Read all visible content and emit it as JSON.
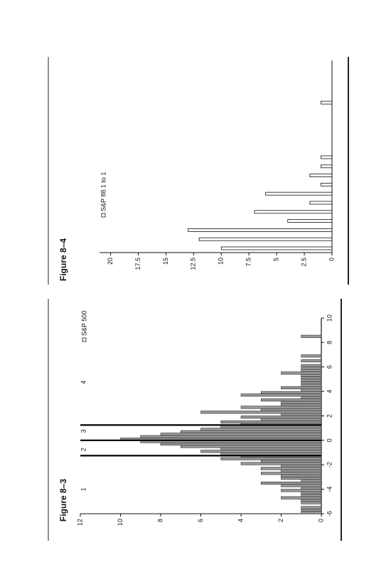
{
  "chart_data": [
    {
      "type": "histogram",
      "title": "Figure 8–3",
      "bins": [
        -6,
        -5.8,
        -5.6,
        -5.4,
        -5.2,
        -5,
        -4.8,
        -4.6,
        -4.4,
        -4.2,
        -4,
        -3.8,
        -3.6,
        -3.4,
        -3.2,
        -3,
        -2.8,
        -2.6,
        -2.4,
        -2.2,
        -2,
        -1.8,
        -1.6,
        -1.4,
        -1.2,
        -1,
        -0.8,
        -0.6,
        -0.4,
        -0.2,
        0,
        0.2,
        0.4,
        0.6,
        0.8,
        1,
        1.2,
        1.4,
        1.6,
        1.8,
        2,
        2.2,
        2.4,
        2.6,
        2.8,
        3,
        3.2,
        3.4,
        3.6,
        3.8,
        4,
        4.2,
        4.4,
        4.6,
        4.8,
        5,
        5.2,
        5.4,
        5.6,
        5.8,
        6,
        6.2,
        6.4,
        6.6,
        6.8,
        7,
        7.2,
        7.4,
        7.6,
        7.8,
        8,
        8.2,
        8.4,
        8.6,
        8.8,
        9,
        9.2,
        9.4,
        9.6,
        9.8,
        10
      ],
      "series": [
        {
          "name": "S&P 500",
          "color": "#9a9a9a",
          "values": [
            1,
            1,
            1,
            0,
            1,
            1,
            2,
            1,
            1,
            2,
            1,
            2,
            3,
            1,
            2,
            2,
            3,
            2,
            3,
            2,
            4,
            3,
            5,
            4,
            5,
            6,
            5,
            7,
            8,
            9,
            10,
            9,
            8,
            7,
            6,
            5,
            4,
            5,
            3,
            4,
            2,
            6,
            3,
            4,
            2,
            2,
            3,
            1,
            4,
            3,
            1,
            2,
            1,
            1,
            1,
            1,
            1,
            2,
            1,
            1,
            1,
            0,
            1,
            0,
            1,
            0,
            0,
            0,
            0,
            0,
            0,
            0,
            1,
            0,
            0,
            0,
            0,
            0,
            0,
            0
          ]
        }
      ],
      "xlim": [
        -6,
        10
      ],
      "xticks": [
        -6,
        -4,
        -2,
        0,
        2,
        4,
        6,
        8,
        10
      ],
      "ylim": [
        0,
        12
      ],
      "yticks": [
        0,
        2,
        4,
        6,
        8,
        10,
        12
      ],
      "vlines": [
        -1.25,
        0,
        1.25
      ],
      "annotations": [
        {
          "text": "1",
          "x": -4
        },
        {
          "text": "2",
          "x": -0.75
        },
        {
          "text": "3",
          "x": 0.75
        },
        {
          "text": "4",
          "x": 4.75
        }
      ]
    },
    {
      "type": "bar",
      "title": "Figure 8–4",
      "categories": [
        null,
        null,
        null,
        null,
        null,
        null,
        null,
        null,
        null,
        null,
        null,
        null,
        null,
        null,
        null,
        null,
        null
      ],
      "series": [
        {
          "name": "S&P 88 1 to 1",
          "color": "#ffffff",
          "values": [
            10,
            12,
            13,
            4,
            7,
            2,
            6,
            1,
            2,
            1,
            1,
            0,
            0,
            0,
            0,
            0,
            1
          ]
        }
      ],
      "ylim": [
        0,
        21
      ],
      "yticks": [
        0,
        2.5,
        5,
        7.5,
        10,
        12.5,
        15,
        17.5,
        20
      ]
    }
  ]
}
